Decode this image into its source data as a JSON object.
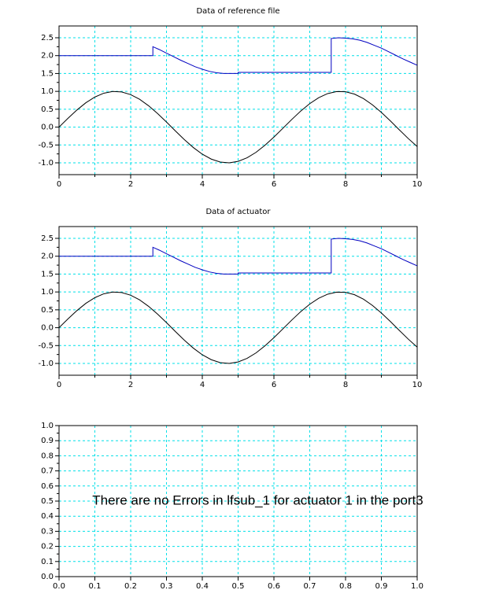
{
  "chart_data": [
    {
      "type": "line",
      "title": "Data of reference file",
      "xlim": [
        0,
        10
      ],
      "xticks": [
        0,
        2,
        4,
        6,
        8,
        10
      ],
      "x_minor_grid": true,
      "ylim": [
        -1.33,
        2.83
      ],
      "yticks": [
        {
          "value": -1,
          "label": "-1.0"
        },
        -0.5,
        {
          "value": 0,
          "label": "0.0"
        },
        0.5,
        {
          "value": 1,
          "label": "1.0"
        },
        1.5,
        {
          "value": 2,
          "label": "2.0"
        },
        2.5
      ],
      "grid": true,
      "series": [
        {
          "color": "#0000c0",
          "x": [
            0,
            2.62,
            2.62,
            2.8,
            3.0,
            3.2,
            3.4,
            3.6,
            3.8,
            4.0,
            4.2,
            4.4,
            4.6,
            4.71,
            5.0,
            5.0,
            7.6,
            7.6,
            7.8,
            8.0,
            8.2,
            8.4,
            8.6,
            8.8,
            9.0,
            9.2,
            9.4,
            9.6,
            9.8,
            10
          ],
          "values": [
            2.0,
            2.0,
            2.25,
            2.17,
            2.07,
            1.97,
            1.87,
            1.78,
            1.69,
            1.62,
            1.56,
            1.52,
            1.5,
            1.5,
            1.5,
            1.53,
            1.53,
            2.48,
            2.5,
            2.49,
            2.47,
            2.43,
            2.37,
            2.29,
            2.21,
            2.11,
            2.01,
            1.91,
            1.82,
            1.73
          ]
        },
        {
          "color": "#000000",
          "x": [
            0,
            0.25,
            0.5,
            0.75,
            1,
            1.25,
            1.5,
            1.75,
            2,
            2.25,
            2.5,
            2.75,
            3,
            3.25,
            3.5,
            3.75,
            4,
            4.25,
            4.5,
            4.75,
            5,
            5.25,
            5.5,
            5.75,
            6,
            6.25,
            6.5,
            6.75,
            7,
            7.25,
            7.5,
            7.75,
            8,
            8.25,
            8.5,
            8.75,
            9,
            9.25,
            9.5,
            9.75,
            10
          ],
          "values": [
            0,
            0.247,
            0.479,
            0.682,
            0.841,
            0.949,
            0.997,
            0.984,
            0.909,
            0.778,
            0.598,
            0.382,
            0.141,
            -0.108,
            -0.351,
            -0.572,
            -0.757,
            -0.895,
            -0.978,
            -0.999,
            -0.959,
            -0.859,
            -0.706,
            -0.508,
            -0.279,
            -0.033,
            0.215,
            0.451,
            0.657,
            0.823,
            0.938,
            0.995,
            0.989,
            0.923,
            0.798,
            0.624,
            0.412,
            0.174,
            -0.075,
            -0.319,
            -0.544
          ]
        }
      ]
    },
    {
      "type": "line",
      "title": "Data of actuator",
      "xlim": [
        0,
        10
      ],
      "xticks": [
        0,
        2,
        4,
        6,
        8,
        10
      ],
      "x_minor_grid": true,
      "ylim": [
        -1.33,
        2.83
      ],
      "yticks": [
        {
          "value": -1,
          "label": "-1.0"
        },
        -0.5,
        {
          "value": 0,
          "label": "0.0"
        },
        0.5,
        {
          "value": 1,
          "label": "1.0"
        },
        1.5,
        {
          "value": 2,
          "label": "2.0"
        },
        2.5
      ],
      "grid": true,
      "series": [
        {
          "color": "#0000c0",
          "x": [
            0,
            2.62,
            2.62,
            2.8,
            3.0,
            3.2,
            3.4,
            3.6,
            3.8,
            4.0,
            4.2,
            4.4,
            4.6,
            4.71,
            5.0,
            5.0,
            7.6,
            7.6,
            7.8,
            8.0,
            8.2,
            8.4,
            8.6,
            8.8,
            9.0,
            9.2,
            9.4,
            9.6,
            9.8,
            10
          ],
          "values": [
            2.0,
            2.0,
            2.25,
            2.17,
            2.07,
            1.97,
            1.87,
            1.78,
            1.69,
            1.62,
            1.56,
            1.52,
            1.5,
            1.5,
            1.5,
            1.53,
            1.53,
            2.48,
            2.5,
            2.49,
            2.47,
            2.43,
            2.37,
            2.29,
            2.21,
            2.11,
            2.01,
            1.91,
            1.82,
            1.73
          ]
        },
        {
          "color": "#000000",
          "x": [
            0,
            0.25,
            0.5,
            0.75,
            1,
            1.25,
            1.5,
            1.75,
            2,
            2.25,
            2.5,
            2.75,
            3,
            3.25,
            3.5,
            3.75,
            4,
            4.25,
            4.5,
            4.75,
            5,
            5.25,
            5.5,
            5.75,
            6,
            6.25,
            6.5,
            6.75,
            7,
            7.25,
            7.5,
            7.75,
            8,
            8.25,
            8.5,
            8.75,
            9,
            9.25,
            9.5,
            9.75,
            10
          ],
          "values": [
            0,
            0.247,
            0.479,
            0.682,
            0.841,
            0.949,
            0.997,
            0.984,
            0.909,
            0.778,
            0.598,
            0.382,
            0.141,
            -0.108,
            -0.351,
            -0.572,
            -0.757,
            -0.895,
            -0.978,
            -0.999,
            -0.959,
            -0.859,
            -0.706,
            -0.508,
            -0.279,
            -0.033,
            0.215,
            0.451,
            0.657,
            0.823,
            0.938,
            0.995,
            0.989,
            0.923,
            0.798,
            0.624,
            0.412,
            0.174,
            -0.075,
            -0.319,
            -0.544
          ]
        }
      ]
    },
    {
      "type": "line",
      "annotation": "There are no Errors in lfsub_1 for actuator 1 in the port3",
      "xlim": [
        0,
        1
      ],
      "xticks": [
        {
          "value": 0,
          "label": "0.0"
        },
        0.1,
        0.2,
        0.3,
        0.4,
        0.5,
        0.6,
        0.7,
        0.8,
        0.9,
        {
          "value": 1,
          "label": "1.0"
        }
      ],
      "ylim": [
        0,
        1
      ],
      "yticks": [
        {
          "value": 0,
          "label": "0.0"
        },
        0.1,
        0.2,
        0.3,
        0.4,
        0.5,
        0.6,
        0.7,
        0.8,
        0.9,
        {
          "value": 1,
          "label": "1.0"
        }
      ],
      "grid": true,
      "series": []
    }
  ]
}
